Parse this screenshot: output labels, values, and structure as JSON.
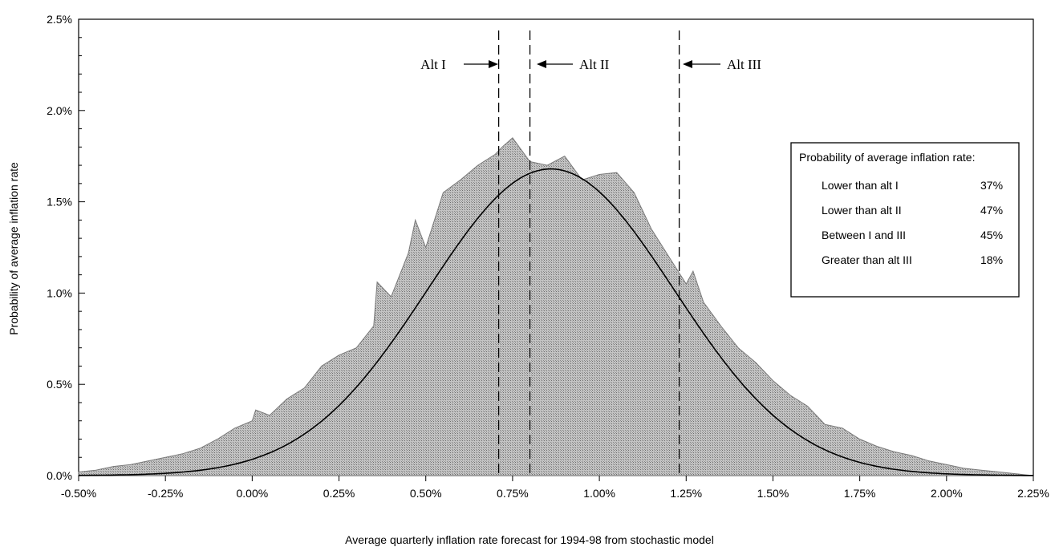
{
  "chart_data": {
    "type": "area",
    "title": "",
    "xlabel": "Average quarterly inflation rate forecast for 1994-98 from stochastic model",
    "ylabel": "Probability of average inflation rate",
    "xlim": [
      -0.5,
      2.25
    ],
    "ylim": [
      0.0,
      2.5
    ],
    "x_ticks": [
      -0.5,
      -0.25,
      0.0,
      0.25,
      0.5,
      0.75,
      1.0,
      1.25,
      1.5,
      1.75,
      2.0,
      2.25
    ],
    "x_tick_labels": [
      "-0.50%",
      "-0.25%",
      "0.00%",
      "0.25%",
      "0.50%",
      "0.75%",
      "1.00%",
      "1.25%",
      "1.50%",
      "1.75%",
      "2.00%",
      "2.25%"
    ],
    "y_ticks": [
      0.0,
      0.5,
      1.0,
      1.5,
      2.0,
      2.5
    ],
    "y_tick_labels": [
      "0.0%",
      "0.5%",
      "1.0%",
      "1.5%",
      "2.0%",
      "2.5%"
    ],
    "grid": false,
    "series": [
      {
        "kind": "histogram",
        "color": "#b3b3b3",
        "x": [
          -0.5,
          -0.45,
          -0.4,
          -0.35,
          -0.3,
          -0.25,
          -0.2,
          -0.15,
          -0.1,
          -0.05,
          0.0,
          0.01,
          0.05,
          0.1,
          0.15,
          0.2,
          0.25,
          0.3,
          0.35,
          0.36,
          0.4,
          0.45,
          0.47,
          0.5,
          0.55,
          0.6,
          0.65,
          0.7,
          0.72,
          0.75,
          0.8,
          0.85,
          0.9,
          0.95,
          1.0,
          1.05,
          1.1,
          1.15,
          1.2,
          1.25,
          1.27,
          1.3,
          1.35,
          1.4,
          1.45,
          1.5,
          1.55,
          1.6,
          1.65,
          1.7,
          1.75,
          1.8,
          1.85,
          1.9,
          1.95,
          2.0,
          2.05,
          2.1,
          2.15,
          2.2,
          2.25
        ],
        "y": [
          0.02,
          0.03,
          0.05,
          0.06,
          0.08,
          0.1,
          0.12,
          0.15,
          0.2,
          0.26,
          0.3,
          0.36,
          0.33,
          0.42,
          0.48,
          0.6,
          0.66,
          0.7,
          0.82,
          1.06,
          0.98,
          1.22,
          1.4,
          1.25,
          1.55,
          1.62,
          1.7,
          1.76,
          1.8,
          1.85,
          1.72,
          1.7,
          1.75,
          1.62,
          1.65,
          1.66,
          1.55,
          1.35,
          1.2,
          1.05,
          1.12,
          0.95,
          0.82,
          0.7,
          0.62,
          0.52,
          0.44,
          0.38,
          0.28,
          0.26,
          0.2,
          0.16,
          0.13,
          0.11,
          0.08,
          0.06,
          0.04,
          0.03,
          0.02,
          0.01,
          0.0
        ]
      },
      {
        "kind": "fitted-curve",
        "color": "#000000",
        "mean": 0.86,
        "sd": 0.355,
        "peak": 1.68
      }
    ],
    "reference_lines": [
      {
        "label": "Alt I",
        "x": 0.71
      },
      {
        "label": "Alt II",
        "x": 0.8
      },
      {
        "label": "Alt III",
        "x": 1.23
      }
    ],
    "legend": {
      "placement": "right",
      "title": "Probability of average inflation rate:",
      "rows": [
        {
          "label": "Lower than alt I",
          "value": "37%"
        },
        {
          "label": "Lower than alt II",
          "value": "47%"
        },
        {
          "label": "Between I and III",
          "value": "45%"
        },
        {
          "label": "Greater than alt III",
          "value": "18%"
        }
      ]
    }
  }
}
